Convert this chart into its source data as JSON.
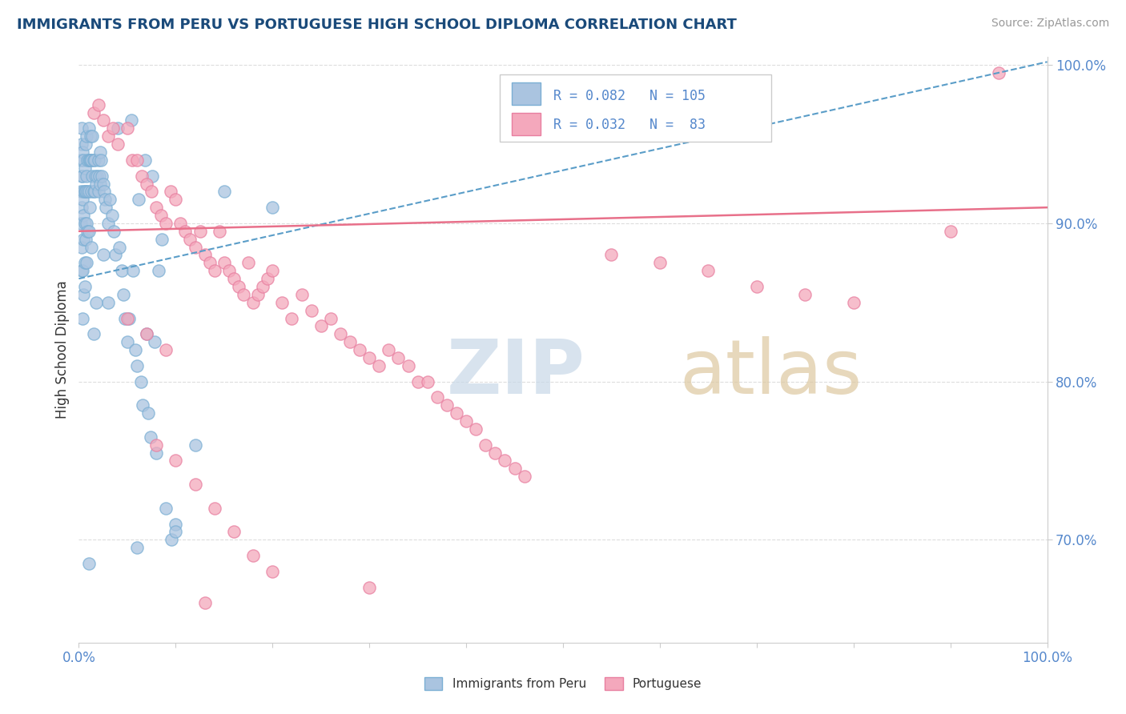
{
  "title": "IMMIGRANTS FROM PERU VS PORTUGUESE HIGH SCHOOL DIPLOMA CORRELATION CHART",
  "source_text": "Source: ZipAtlas.com",
  "ylabel": "High School Diploma",
  "x_min": 0.0,
  "x_max": 1.0,
  "y_min": 0.635,
  "y_max": 1.005,
  "y_tick_labels": [
    "70.0%",
    "80.0%",
    "90.0%",
    "100.0%"
  ],
  "y_tick_positions": [
    0.7,
    0.8,
    0.9,
    1.0
  ],
  "series1_label": "Immigrants from Peru",
  "series2_label": "Portuguese",
  "R1": 0.082,
  "N1": 105,
  "R2": 0.032,
  "N2": 83,
  "color1": "#aac4e0",
  "color2": "#f4a8bc",
  "edge1": "#7bafd4",
  "edge2": "#e87fa0",
  "trend1_color": "#5a9dc8",
  "trend2_color": "#e8708a",
  "title_color": "#1a4a7a",
  "axis_label_color": "#5588cc",
  "tick_color": "#5588cc",
  "background_color": "#ffffff",
  "trend1_y_start": 0.865,
  "trend1_y_end": 1.002,
  "trend2_y_start": 0.895,
  "trend2_y_end": 0.91,
  "series1_x": [
    0.002,
    0.002,
    0.002,
    0.003,
    0.003,
    0.003,
    0.003,
    0.003,
    0.003,
    0.004,
    0.004,
    0.004,
    0.004,
    0.005,
    0.005,
    0.005,
    0.005,
    0.005,
    0.006,
    0.006,
    0.006,
    0.006,
    0.007,
    0.007,
    0.007,
    0.008,
    0.008,
    0.008,
    0.009,
    0.009,
    0.009,
    0.01,
    0.01,
    0.01,
    0.01,
    0.011,
    0.011,
    0.012,
    0.012,
    0.013,
    0.013,
    0.014,
    0.014,
    0.015,
    0.015,
    0.016,
    0.016,
    0.017,
    0.018,
    0.019,
    0.02,
    0.02,
    0.021,
    0.022,
    0.022,
    0.023,
    0.024,
    0.025,
    0.026,
    0.027,
    0.028,
    0.03,
    0.032,
    0.034,
    0.036,
    0.038,
    0.04,
    0.042,
    0.044,
    0.046,
    0.048,
    0.05,
    0.052,
    0.054,
    0.056,
    0.058,
    0.06,
    0.062,
    0.064,
    0.066,
    0.068,
    0.07,
    0.072,
    0.074,
    0.076,
    0.078,
    0.08,
    0.082,
    0.086,
    0.09,
    0.096,
    0.1,
    0.15,
    0.2,
    0.01,
    0.06,
    0.1,
    0.12,
    0.03,
    0.025,
    0.015,
    0.018,
    0.013,
    0.008,
    0.006,
    0.004
  ],
  "series1_y": [
    0.94,
    0.92,
    0.9,
    0.96,
    0.95,
    0.93,
    0.91,
    0.885,
    0.87,
    0.945,
    0.93,
    0.915,
    0.87,
    0.94,
    0.92,
    0.905,
    0.89,
    0.855,
    0.935,
    0.92,
    0.9,
    0.875,
    0.95,
    0.92,
    0.89,
    0.955,
    0.93,
    0.9,
    0.94,
    0.92,
    0.895,
    0.96,
    0.94,
    0.92,
    0.895,
    0.94,
    0.91,
    0.955,
    0.94,
    0.94,
    0.92,
    0.955,
    0.93,
    0.94,
    0.92,
    0.94,
    0.92,
    0.93,
    0.925,
    0.93,
    0.94,
    0.92,
    0.93,
    0.945,
    0.925,
    0.94,
    0.93,
    0.925,
    0.92,
    0.915,
    0.91,
    0.9,
    0.915,
    0.905,
    0.895,
    0.88,
    0.96,
    0.885,
    0.87,
    0.855,
    0.84,
    0.825,
    0.84,
    0.965,
    0.87,
    0.82,
    0.81,
    0.915,
    0.8,
    0.785,
    0.94,
    0.83,
    0.78,
    0.765,
    0.93,
    0.825,
    0.755,
    0.87,
    0.89,
    0.72,
    0.7,
    0.71,
    0.92,
    0.91,
    0.685,
    0.695,
    0.705,
    0.76,
    0.85,
    0.88,
    0.83,
    0.85,
    0.885,
    0.875,
    0.86,
    0.84
  ],
  "series2_x": [
    0.015,
    0.02,
    0.025,
    0.03,
    0.035,
    0.04,
    0.05,
    0.055,
    0.06,
    0.065,
    0.07,
    0.075,
    0.08,
    0.085,
    0.09,
    0.095,
    0.1,
    0.105,
    0.11,
    0.115,
    0.12,
    0.125,
    0.13,
    0.135,
    0.14,
    0.145,
    0.15,
    0.155,
    0.16,
    0.165,
    0.17,
    0.175,
    0.18,
    0.185,
    0.19,
    0.195,
    0.2,
    0.21,
    0.22,
    0.23,
    0.24,
    0.25,
    0.26,
    0.27,
    0.28,
    0.29,
    0.3,
    0.31,
    0.32,
    0.33,
    0.34,
    0.35,
    0.36,
    0.37,
    0.38,
    0.39,
    0.4,
    0.41,
    0.42,
    0.43,
    0.44,
    0.45,
    0.46,
    0.55,
    0.6,
    0.65,
    0.7,
    0.75,
    0.8,
    0.9,
    0.95,
    0.08,
    0.1,
    0.12,
    0.14,
    0.16,
    0.18,
    0.2,
    0.3,
    0.05,
    0.07,
    0.09,
    0.13
  ],
  "series2_y": [
    0.97,
    0.975,
    0.965,
    0.955,
    0.96,
    0.95,
    0.96,
    0.94,
    0.94,
    0.93,
    0.925,
    0.92,
    0.91,
    0.905,
    0.9,
    0.92,
    0.915,
    0.9,
    0.895,
    0.89,
    0.885,
    0.895,
    0.88,
    0.875,
    0.87,
    0.895,
    0.875,
    0.87,
    0.865,
    0.86,
    0.855,
    0.875,
    0.85,
    0.855,
    0.86,
    0.865,
    0.87,
    0.85,
    0.84,
    0.855,
    0.845,
    0.835,
    0.84,
    0.83,
    0.825,
    0.82,
    0.815,
    0.81,
    0.82,
    0.815,
    0.81,
    0.8,
    0.8,
    0.79,
    0.785,
    0.78,
    0.775,
    0.77,
    0.76,
    0.755,
    0.75,
    0.745,
    0.74,
    0.88,
    0.875,
    0.87,
    0.86,
    0.855,
    0.85,
    0.895,
    0.995,
    0.76,
    0.75,
    0.735,
    0.72,
    0.705,
    0.69,
    0.68,
    0.67,
    0.84,
    0.83,
    0.82,
    0.66
  ]
}
